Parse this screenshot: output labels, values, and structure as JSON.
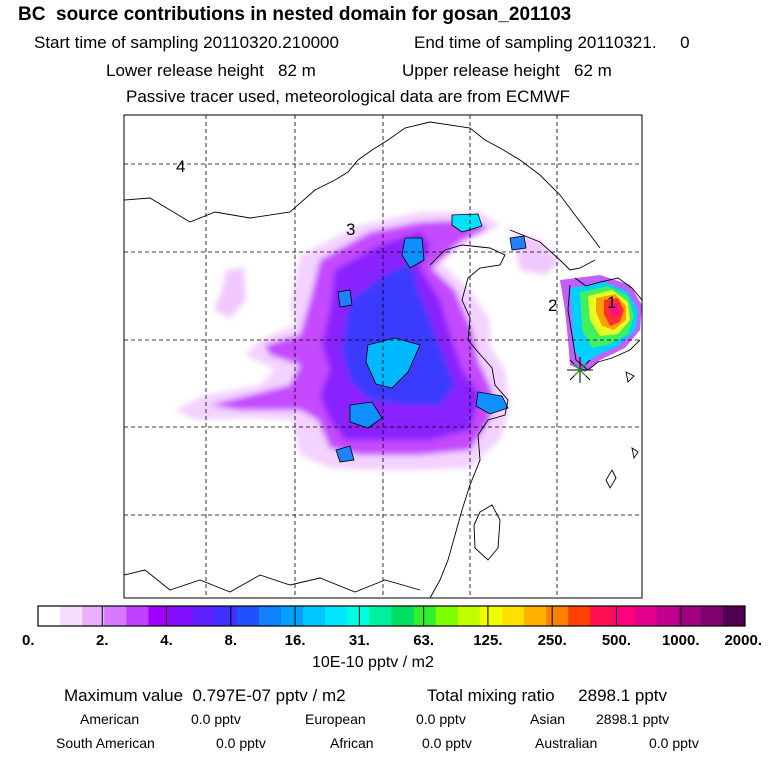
{
  "header": {
    "title": "BC  source contributions in nested domain for gosan_201103",
    "start_time": "Start time of sampling 20110320.210000",
    "end_time": "End time of sampling 20110321.     0",
    "lower_release": "Lower release height   82 m",
    "upper_release": "Upper release height   62 m",
    "tracer_note": "Passive tracer used, meteorological data are from ECMWF"
  },
  "chart_data": {
    "type": "heatmap",
    "title": "BC  source contributions in nested domain for gosan_201103",
    "region_labels": [
      "1",
      "2",
      "3",
      "4"
    ],
    "colorbar": {
      "ticks": [
        "0.",
        "2.",
        "4.",
        "8.",
        "16.",
        "31.",
        "63.",
        "125.",
        "250.",
        "500.",
        "1000.",
        "2000."
      ],
      "units": "10E-10 pptv / m2",
      "colors": [
        "#ffffff",
        "#f6dcff",
        "#e8b0ff",
        "#d878ff",
        "#c040ff",
        "#a000ff",
        "#8010ff",
        "#6020ff",
        "#4030ff",
        "#2050ff",
        "#1080ff",
        "#00a0ff",
        "#00c8ff",
        "#00e8ff",
        "#00ffe0",
        "#00f0a0",
        "#00e060",
        "#30f030",
        "#80ff00",
        "#c0ff00",
        "#f0ff00",
        "#ffe000",
        "#ffb000",
        "#ff8000",
        "#ff4000",
        "#ff1050",
        "#ff0080",
        "#e0008c",
        "#c00090",
        "#a00080",
        "#800070",
        "#500050"
      ]
    },
    "grid": true
  },
  "stats": {
    "max_value": "Maximum value  0.797E-07 pptv / m2",
    "total_mixing": "Total mixing ratio     2898.1 pptv",
    "american": "American",
    "american_val": "0.0 pptv",
    "european": "European",
    "european_val": "0.0 pptv",
    "asian": "Asian",
    "asian_val": "2898.1 pptv",
    "south_american": "South American",
    "south_american_val": "0.0 pptv",
    "african": "African",
    "african_val": "0.0 pptv",
    "australian": "Australian",
    "australian_val": "0.0 pptv"
  }
}
